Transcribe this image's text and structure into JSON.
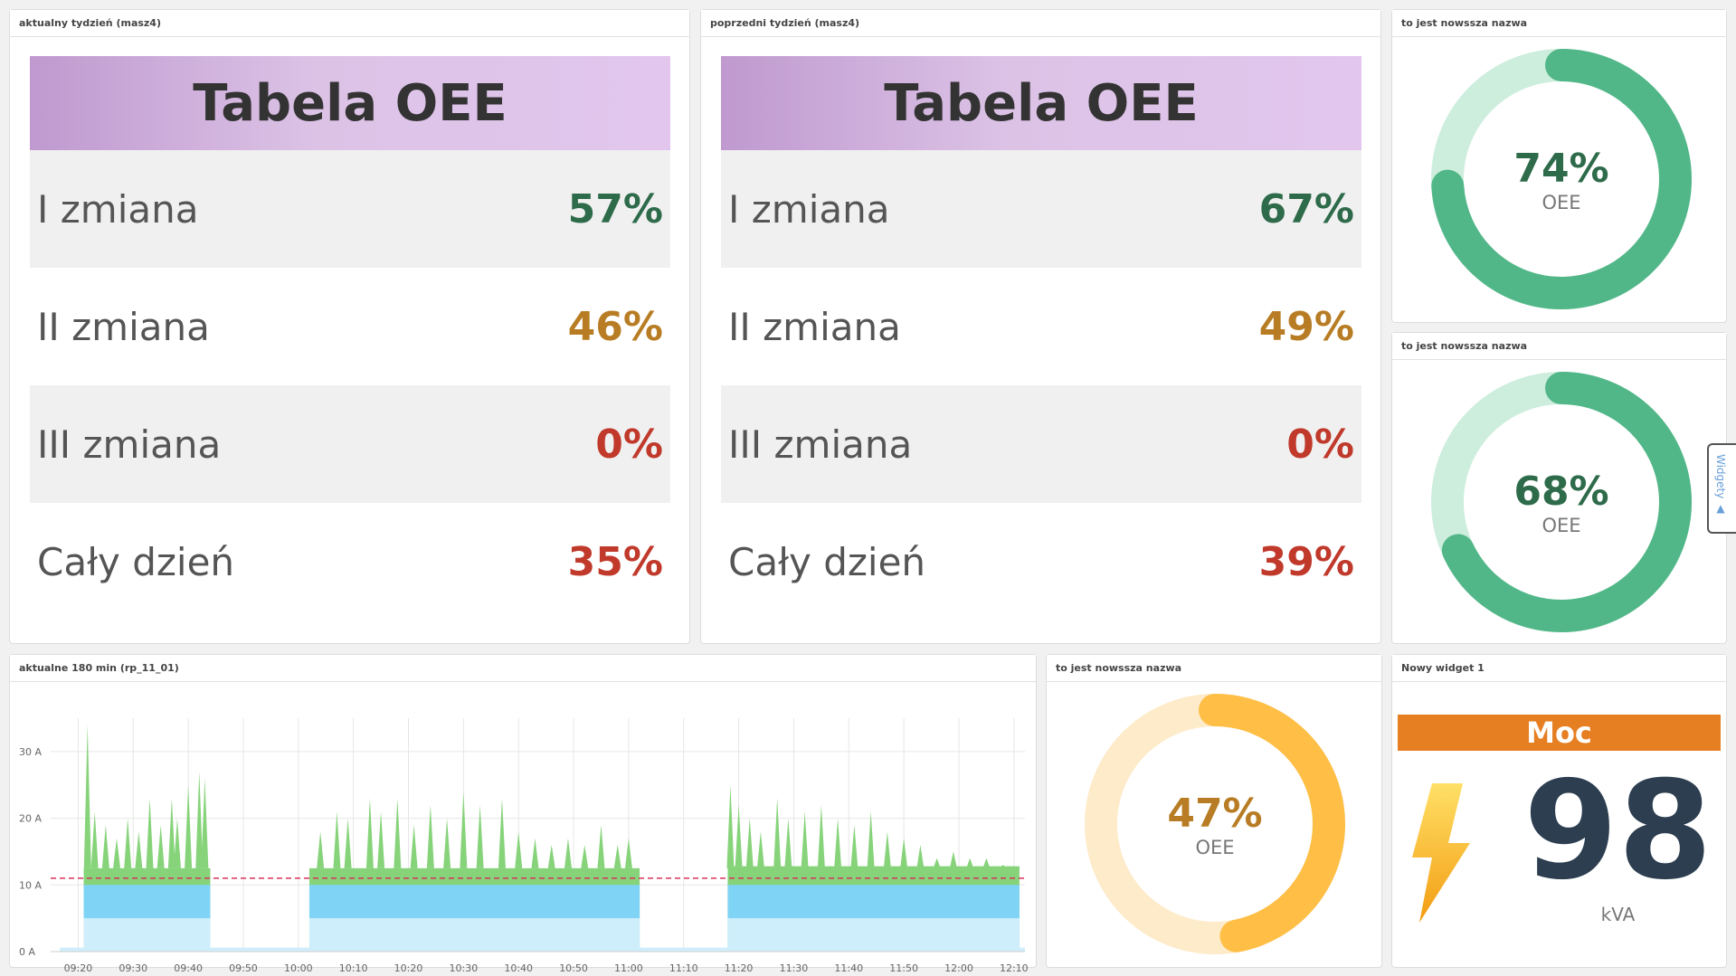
{
  "panels": {
    "current_week": {
      "header": "aktualny tydzień (masz4)"
    },
    "previous_week": {
      "header": "poprzedni tydzień (masz4)"
    },
    "gauge_top": {
      "header": "to jest nowssza nazwa"
    },
    "gauge_mid": {
      "header": "to jest nowssza nazwa"
    },
    "chart": {
      "header": "aktualne 180 min (rp_11_01)"
    },
    "gauge_bottom": {
      "header": "to jest nowssza nazwa"
    },
    "power": {
      "header": "Nowy widget 1"
    }
  },
  "current_table": {
    "title": "Tabela OEE",
    "rows": [
      {
        "label": "I zmiana",
        "value": "57%",
        "color": "#2e6b4a"
      },
      {
        "label": "II zmiana",
        "value": "46%",
        "color": "#b87d24"
      },
      {
        "label": "III zmiana",
        "value": "0%",
        "color": "#c0392b"
      },
      {
        "label": "Cały dzień",
        "value": "35%",
        "color": "#c0392b"
      }
    ]
  },
  "previous_table": {
    "title": "Tabela OEE",
    "rows": [
      {
        "label": "I zmiana",
        "value": "67%",
        "color": "#2e6b4a"
      },
      {
        "label": "II zmiana",
        "value": "49%",
        "color": "#b87d24"
      },
      {
        "label": "III zmiana",
        "value": "0%",
        "color": "#c0392b"
      },
      {
        "label": "Cały dzień",
        "value": "39%",
        "color": "#c0392b"
      }
    ]
  },
  "gauges": {
    "top": {
      "percent": "74%",
      "fraction": 0.74,
      "label": "OEE",
      "color": "#52b788",
      "text_color": "#2e6b4a"
    },
    "mid": {
      "percent": "68%",
      "fraction": 0.68,
      "label": "OEE",
      "color": "#52b788",
      "text_color": "#2e6b4a"
    },
    "bottom": {
      "percent": "47%",
      "fraction": 0.47,
      "label": "OEE",
      "color": "#ffbe45",
      "text_color": "#b87d24"
    }
  },
  "power": {
    "title": "Moc",
    "value": "98",
    "unit": "kVA",
    "icon": "lightning-bolt-icon"
  },
  "side_tab": {
    "label": "Widgety ▲"
  },
  "chart_data": {
    "type": "area",
    "title": "",
    "xlabel": "",
    "ylabel": "",
    "y_ticks": [
      "0 A",
      "10 A",
      "20 A",
      "30 A"
    ],
    "ylim": [
      0,
      35
    ],
    "x_ticks": [
      "09:20",
      "09:30",
      "09:40",
      "09:50",
      "10:00",
      "10:10",
      "10:20",
      "10:30",
      "10:40",
      "10:50",
      "11:00",
      "11:10",
      "11:20",
      "11:30",
      "11:40",
      "11:50",
      "12:00",
      "12:10"
    ],
    "threshold": 11,
    "series": [
      {
        "color": "#cfeefb",
        "segments": [
          {
            "start": "09:21",
            "end": "09:44",
            "value": 5
          },
          {
            "start": "10:02",
            "end": "11:02",
            "value": 5
          },
          {
            "start": "11:18",
            "end": "12:11",
            "value": 5
          }
        ]
      },
      {
        "color": "#7fd3f5",
        "segments": [
          {
            "start": "09:21",
            "end": "09:44",
            "value": 10
          },
          {
            "start": "10:02",
            "end": "11:02",
            "value": 10
          },
          {
            "start": "11:18",
            "end": "12:11",
            "value": 10
          }
        ]
      },
      {
        "color": "#86d37a",
        "segments": [
          {
            "start": "09:21",
            "end": "09:44",
            "value": 12.5
          },
          {
            "start": "10:02",
            "end": "11:02",
            "value": 12.5
          },
          {
            "start": "11:18",
            "end": "12:11",
            "value": 12.8
          }
        ]
      }
    ],
    "peaks": [
      {
        "t": "09:21.7",
        "v": 34
      },
      {
        "t": "09:23",
        "v": 21
      },
      {
        "t": "09:25",
        "v": 19
      },
      {
        "t": "09:27",
        "v": 17
      },
      {
        "t": "09:29",
        "v": 20
      },
      {
        "t": "09:31",
        "v": 18
      },
      {
        "t": "09:33",
        "v": 23
      },
      {
        "t": "09:35",
        "v": 19
      },
      {
        "t": "09:37",
        "v": 23
      },
      {
        "t": "09:38",
        "v": 20
      },
      {
        "t": "09:40",
        "v": 25
      },
      {
        "t": "09:42",
        "v": 27
      },
      {
        "t": "09:43",
        "v": 26
      },
      {
        "t": "10:04",
        "v": 18
      },
      {
        "t": "10:07",
        "v": 21
      },
      {
        "t": "10:09",
        "v": 20
      },
      {
        "t": "10:13",
        "v": 23
      },
      {
        "t": "10:15",
        "v": 21
      },
      {
        "t": "10:18",
        "v": 23
      },
      {
        "t": "10:21",
        "v": 19
      },
      {
        "t": "10:24",
        "v": 22
      },
      {
        "t": "10:27",
        "v": 20
      },
      {
        "t": "10:30",
        "v": 24
      },
      {
        "t": "10:33",
        "v": 22
      },
      {
        "t": "10:37",
        "v": 23
      },
      {
        "t": "10:40",
        "v": 18
      },
      {
        "t": "10:43",
        "v": 17
      },
      {
        "t": "10:46",
        "v": 16
      },
      {
        "t": "10:49",
        "v": 17
      },
      {
        "t": "10:52",
        "v": 16
      },
      {
        "t": "10:55",
        "v": 19
      },
      {
        "t": "10:58",
        "v": 16
      },
      {
        "t": "11:00",
        "v": 17
      },
      {
        "t": "11:18.5",
        "v": 25
      },
      {
        "t": "11:20",
        "v": 22
      },
      {
        "t": "11:22",
        "v": 20
      },
      {
        "t": "11:24",
        "v": 18
      },
      {
        "t": "11:27",
        "v": 23
      },
      {
        "t": "11:29",
        "v": 20
      },
      {
        "t": "11:32",
        "v": 21
      },
      {
        "t": "11:35",
        "v": 22
      },
      {
        "t": "11:38",
        "v": 20
      },
      {
        "t": "11:41",
        "v": 19
      },
      {
        "t": "11:44",
        "v": 21
      },
      {
        "t": "11:47",
        "v": 18
      },
      {
        "t": "11:50",
        "v": 17
      },
      {
        "t": "11:53",
        "v": 16
      },
      {
        "t": "11:56",
        "v": 14
      },
      {
        "t": "11:59",
        "v": 15
      },
      {
        "t": "12:02",
        "v": 14
      },
      {
        "t": "12:05",
        "v": 14
      },
      {
        "t": "12:08",
        "v": 13
      }
    ]
  }
}
